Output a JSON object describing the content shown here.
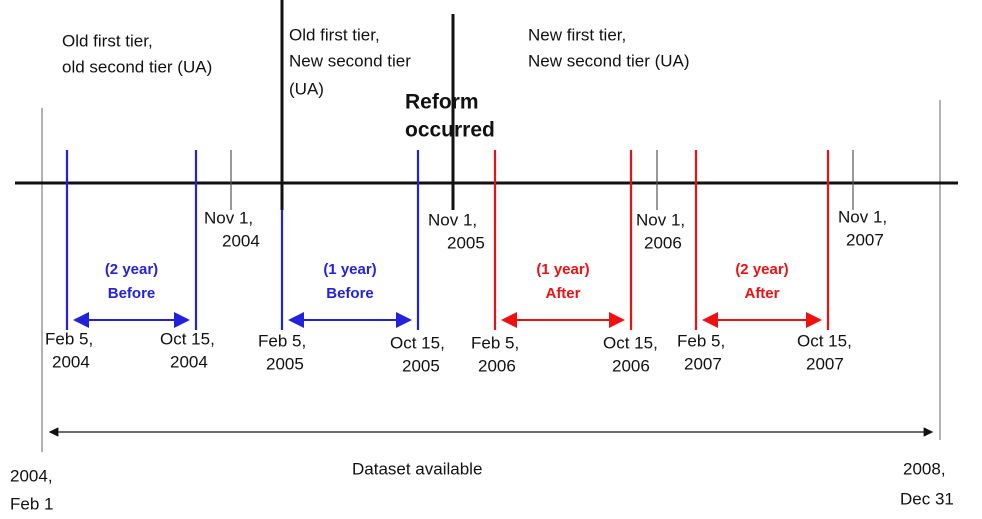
{
  "regions": [
    {
      "lines": [
        "Old first tier,",
        "old second tier (UA)"
      ]
    },
    {
      "lines": [
        "Old first tier,",
        "New second tier",
        "(UA)"
      ]
    },
    {
      "lines": [
        "New first tier,",
        "New second tier (UA)"
      ]
    }
  ],
  "reform": {
    "lines": [
      "Reform",
      "occurred"
    ]
  },
  "markers": [
    {
      "lines": [
        "Nov 1,",
        "2004"
      ]
    },
    {
      "lines": [
        "Nov 1,",
        "2005"
      ]
    },
    {
      "lines": [
        "Nov 1,",
        "2006"
      ]
    },
    {
      "lines": [
        "Nov 1,",
        "2007"
      ]
    }
  ],
  "windows": [
    {
      "label": [
        "(2 year)",
        "Before"
      ],
      "start": [
        "Feb 5,",
        "2004"
      ],
      "end": [
        "Oct 15,",
        "2004"
      ]
    },
    {
      "label": [
        "(1 year)",
        "Before"
      ],
      "start": [
        "Feb 5,",
        "2005"
      ],
      "end": [
        "Oct 15,",
        "2005"
      ]
    },
    {
      "label": [
        "(1 year)",
        "After"
      ],
      "start": [
        "Feb 5,",
        "2006"
      ],
      "end": [
        "Oct 15,",
        "2006"
      ]
    },
    {
      "label": [
        "(2 year)",
        "After"
      ],
      "start": [
        "Feb 5,",
        "2007"
      ],
      "end": [
        "Oct 15,",
        "2007"
      ]
    }
  ],
  "dataset": {
    "label": "Dataset available",
    "start": [
      "2004,",
      "Feb 1"
    ],
    "end": [
      "2008,",
      "Dec 31"
    ]
  }
}
